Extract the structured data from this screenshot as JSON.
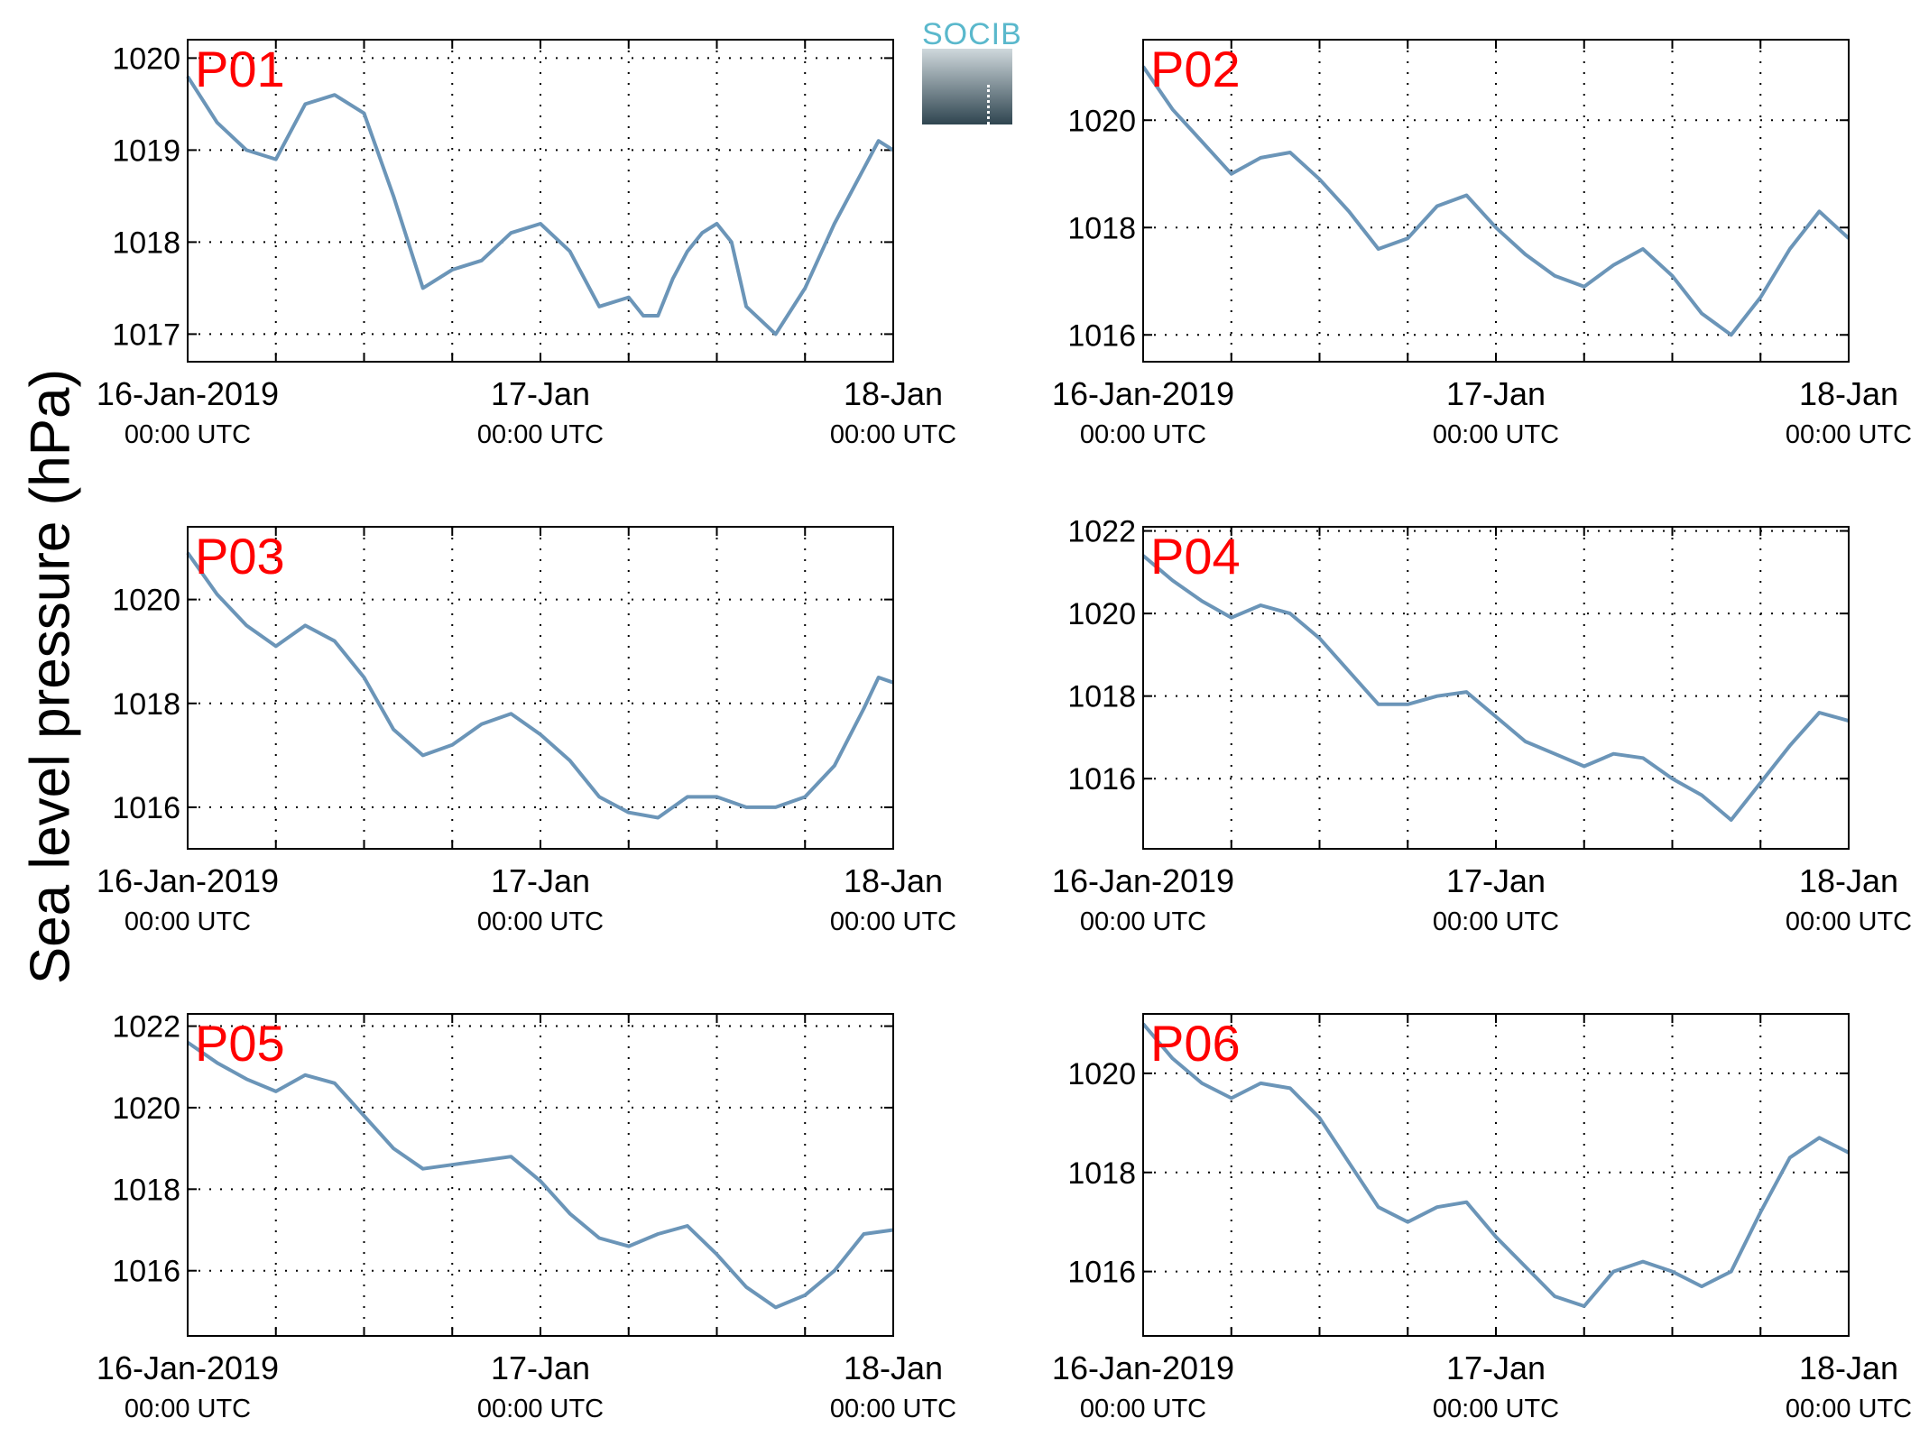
{
  "ylabel": "Sea level pressure (hPa)",
  "logo": {
    "text": "SOCIB"
  },
  "colors": {
    "line": "#6b95b8",
    "label": "#ff0000",
    "grid": "#000000"
  },
  "chart_data": [
    {
      "type": "line",
      "label": "P01",
      "ylim": [
        1016.7,
        1020.2
      ],
      "yticks": [
        1017,
        1018,
        1019,
        1020
      ],
      "xticks": [
        {
          "t": 0,
          "l1": "16-Jan-2019",
          "l2": "00:00 UTC"
        },
        {
          "t": 24,
          "l1": "17-Jan",
          "l2": "00:00 UTC"
        },
        {
          "t": 48,
          "l1": "18-Jan",
          "l2": "00:00 UTC"
        }
      ],
      "x": [
        0,
        2,
        4,
        6,
        8,
        10,
        12,
        14,
        16,
        18,
        20,
        22,
        24,
        26,
        28,
        30,
        31,
        32,
        33,
        34,
        35,
        36,
        37,
        38,
        40,
        42,
        44,
        46,
        47,
        48
      ],
      "y": [
        1019.8,
        1019.3,
        1019.0,
        1018.9,
        1019.5,
        1019.6,
        1019.4,
        1018.5,
        1017.5,
        1017.7,
        1017.8,
        1018.1,
        1018.2,
        1017.9,
        1017.3,
        1017.4,
        1017.2,
        1017.2,
        1017.6,
        1017.9,
        1018.1,
        1018.2,
        1018.0,
        1017.3,
        1017.0,
        1017.5,
        1018.2,
        1018.8,
        1019.1,
        1019.0
      ]
    },
    {
      "type": "line",
      "label": "P02",
      "ylim": [
        1015.5,
        1021.5
      ],
      "yticks": [
        1016,
        1018,
        1020
      ],
      "xticks": [
        {
          "t": 0,
          "l1": "16-Jan-2019",
          "l2": "00:00 UTC"
        },
        {
          "t": 24,
          "l1": "17-Jan",
          "l2": "00:00 UTC"
        },
        {
          "t": 48,
          "l1": "18-Jan",
          "l2": "00:00 UTC"
        }
      ],
      "x": [
        0,
        2,
        4,
        6,
        8,
        10,
        12,
        14,
        16,
        18,
        20,
        22,
        24,
        26,
        28,
        30,
        32,
        34,
        36,
        38,
        40,
        42,
        44,
        46,
        48
      ],
      "y": [
        1021.0,
        1020.2,
        1019.6,
        1019.0,
        1019.3,
        1019.4,
        1018.9,
        1018.3,
        1017.6,
        1017.8,
        1018.4,
        1018.6,
        1018.0,
        1017.5,
        1017.1,
        1016.9,
        1017.3,
        1017.6,
        1017.1,
        1016.4,
        1016.0,
        1016.7,
        1017.6,
        1018.3,
        1017.8
      ]
    },
    {
      "type": "line",
      "label": "P03",
      "ylim": [
        1015.2,
        1021.4
      ],
      "yticks": [
        1016,
        1018,
        1020
      ],
      "xticks": [
        {
          "t": 0,
          "l1": "16-Jan-2019",
          "l2": "00:00 UTC"
        },
        {
          "t": 24,
          "l1": "17-Jan",
          "l2": "00:00 UTC"
        },
        {
          "t": 48,
          "l1": "18-Jan",
          "l2": "00:00 UTC"
        }
      ],
      "x": [
        0,
        2,
        4,
        6,
        8,
        10,
        12,
        14,
        16,
        18,
        20,
        22,
        24,
        26,
        28,
        30,
        32,
        34,
        36,
        38,
        40,
        42,
        44,
        46,
        47,
        48
      ],
      "y": [
        1020.9,
        1020.1,
        1019.5,
        1019.1,
        1019.5,
        1019.2,
        1018.5,
        1017.5,
        1017.0,
        1017.2,
        1017.6,
        1017.8,
        1017.4,
        1016.9,
        1016.2,
        1015.9,
        1015.8,
        1016.2,
        1016.2,
        1016.0,
        1016.0,
        1016.2,
        1016.8,
        1017.9,
        1018.5,
        1018.4
      ]
    },
    {
      "type": "line",
      "label": "P04",
      "ylim": [
        1014.3,
        1022.1
      ],
      "yticks": [
        1016,
        1018,
        1020,
        1022
      ],
      "xticks": [
        {
          "t": 0,
          "l1": "16-Jan-2019",
          "l2": "00:00 UTC"
        },
        {
          "t": 24,
          "l1": "17-Jan",
          "l2": "00:00 UTC"
        },
        {
          "t": 48,
          "l1": "18-Jan",
          "l2": "00:00 UTC"
        }
      ],
      "x": [
        0,
        2,
        4,
        6,
        8,
        10,
        12,
        14,
        16,
        18,
        20,
        22,
        24,
        26,
        28,
        30,
        32,
        34,
        36,
        38,
        40,
        42,
        44,
        46,
        48
      ],
      "y": [
        1021.4,
        1020.8,
        1020.3,
        1019.9,
        1020.2,
        1020.0,
        1019.4,
        1018.6,
        1017.8,
        1017.8,
        1018.0,
        1018.1,
        1017.5,
        1016.9,
        1016.6,
        1016.3,
        1016.6,
        1016.5,
        1016.0,
        1015.6,
        1015.0,
        1015.9,
        1016.8,
        1017.6,
        1017.4
      ]
    },
    {
      "type": "line",
      "label": "P05",
      "ylim": [
        1014.4,
        1022.3
      ],
      "yticks": [
        1016,
        1018,
        1020,
        1022
      ],
      "xticks": [
        {
          "t": 0,
          "l1": "16-Jan-2019",
          "l2": "00:00 UTC"
        },
        {
          "t": 24,
          "l1": "17-Jan",
          "l2": "00:00 UTC"
        },
        {
          "t": 48,
          "l1": "18-Jan",
          "l2": "00:00 UTC"
        }
      ],
      "x": [
        0,
        2,
        4,
        6,
        8,
        10,
        12,
        14,
        16,
        18,
        20,
        22,
        24,
        26,
        28,
        30,
        32,
        34,
        36,
        38,
        40,
        42,
        44,
        46,
        48
      ],
      "y": [
        1021.6,
        1021.1,
        1020.7,
        1020.4,
        1020.8,
        1020.6,
        1019.8,
        1019.0,
        1018.5,
        1018.6,
        1018.7,
        1018.8,
        1018.2,
        1017.4,
        1016.8,
        1016.6,
        1016.9,
        1017.1,
        1016.4,
        1015.6,
        1015.1,
        1015.4,
        1016.0,
        1016.9,
        1017.0
      ]
    },
    {
      "type": "line",
      "label": "P06",
      "ylim": [
        1014.7,
        1021.2
      ],
      "yticks": [
        1016,
        1018,
        1020
      ],
      "xticks": [
        {
          "t": 0,
          "l1": "16-Jan-2019",
          "l2": "00:00 UTC"
        },
        {
          "t": 24,
          "l1": "17-Jan",
          "l2": "00:00 UTC"
        },
        {
          "t": 48,
          "l1": "18-Jan",
          "l2": "00:00 UTC"
        }
      ],
      "x": [
        0,
        2,
        4,
        6,
        8,
        10,
        12,
        14,
        16,
        18,
        20,
        22,
        24,
        26,
        28,
        30,
        32,
        34,
        36,
        38,
        40,
        42,
        44,
        46,
        48
      ],
      "y": [
        1021.0,
        1020.3,
        1019.8,
        1019.5,
        1019.8,
        1019.7,
        1019.1,
        1018.2,
        1017.3,
        1017.0,
        1017.3,
        1017.4,
        1016.7,
        1016.1,
        1015.5,
        1015.3,
        1016.0,
        1016.2,
        1016.0,
        1015.7,
        1016.0,
        1017.2,
        1018.3,
        1018.7,
        1018.4
      ]
    }
  ]
}
